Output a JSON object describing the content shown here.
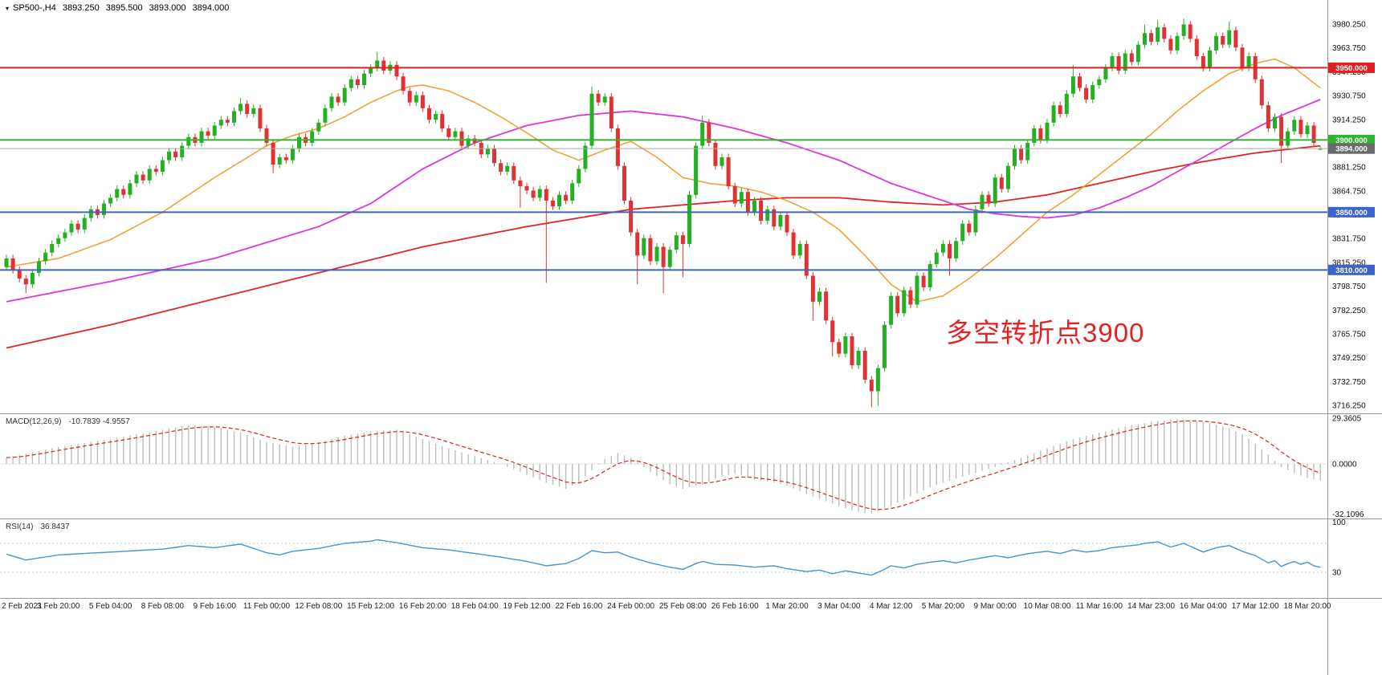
{
  "header": {
    "collapse_icon": "▾",
    "symbol_tf": "SP500-,H4",
    "open": "3893.250",
    "high": "3895.500",
    "low": "3893.000",
    "close": "3894.000"
  },
  "chart_data": {
    "type": "candlestick",
    "symbol": "SP500-",
    "timeframe": "H4",
    "bars_per_label": 8,
    "x_labels": [
      "2 Feb 2021",
      "3 Feb 20:00",
      "5 Feb 04:00",
      "8 Feb 08:00",
      "9 Feb 16:00",
      "11 Feb 00:00",
      "12 Feb 08:00",
      "15 Feb 12:00",
      "16 Feb 20:00",
      "18 Feb 04:00",
      "19 Feb 12:00",
      "22 Feb 16:00",
      "24 Feb 00:00",
      "25 Feb 08:00",
      "26 Feb 16:00",
      "1 Mar 20:00",
      "3 Mar 04:00",
      "4 Mar 12:00",
      "5 Mar 20:00",
      "9 Mar 00:00",
      "10 Mar 08:00",
      "11 Mar 16:00",
      "14 Mar 23:00",
      "16 Mar 04:00",
      "17 Mar 12:00",
      "18 Mar 20:00"
    ],
    "y_axis": {
      "top": 3980.25,
      "step": 16.5,
      "count": 17
    },
    "closes": [
      3818,
      3810,
      3804,
      3800,
      3808,
      3816,
      3822,
      3828,
      3832,
      3836,
      3842,
      3838,
      3846,
      3852,
      3848,
      3856,
      3860,
      3866,
      3862,
      3870,
      3876,
      3872,
      3880,
      3878,
      3886,
      3892,
      3888,
      3896,
      3902,
      3898,
      3906,
      3903,
      3910,
      3914,
      3912,
      3920,
      3925,
      3918,
      3922,
      3908,
      3898,
      3883,
      3888,
      3886,
      3894,
      3902,
      3898,
      3906,
      3912,
      3922,
      3930,
      3926,
      3936,
      3942,
      3938,
      3946,
      3950,
      3955,
      3948,
      3952,
      3944,
      3934,
      3926,
      3931,
      3922,
      3914,
      3918,
      3908,
      3902,
      3906,
      3896,
      3901,
      3898,
      3890,
      3894,
      3884,
      3878,
      3882,
      3872,
      3868,
      3865,
      3860,
      3866,
      3858,
      3854,
      3862,
      3858,
      3870,
      3880,
      3896,
      3932,
      3926,
      3930,
      3908,
      3882,
      3858,
      3836,
      3820,
      3832,
      3816,
      3826,
      3812,
      3824,
      3834,
      3828,
      3862,
      3896,
      3912,
      3898,
      3882,
      3888,
      3868,
      3856,
      3864,
      3850,
      3858,
      3844,
      3852,
      3840,
      3848,
      3836,
      3820,
      3828,
      3806,
      3788,
      3795,
      3775,
      3760,
      3752,
      3764,
      3744,
      3754,
      3734,
      3726,
      3742,
      3772,
      3792,
      3780,
      3796,
      3786,
      3806,
      3798,
      3814,
      3822,
      3828,
      3818,
      3830,
      3842,
      3836,
      3852,
      3862,
      3856,
      3874,
      3866,
      3882,
      3894,
      3886,
      3898,
      3908,
      3900,
      3912,
      3924,
      3918,
      3932,
      3944,
      3936,
      3928,
      3938,
      3942,
      3950,
      3958,
      3948,
      3960,
      3954,
      3966,
      3974,
      3968,
      3978,
      3970,
      3962,
      3972,
      3980,
      3970,
      3958,
      3950,
      3962,
      3972,
      3966,
      3976,
      3964,
      3950,
      3958,
      3942,
      3924,
      3908,
      3916,
      3896,
      3906,
      3914,
      3904,
      3910,
      3898,
      3894
    ],
    "wick_highs": {
      "36": 3929,
      "57": 3961,
      "90": 3937,
      "107": 3917,
      "164": 3952,
      "175": 3980,
      "177": 3983,
      "181": 3984,
      "188": 3982
    },
    "wick_lows": {
      "3": 3794,
      "41": 3877,
      "79": 3853,
      "83": 3801,
      "97": 3800,
      "101": 3794,
      "104": 3805,
      "124": 3775,
      "127": 3750,
      "133": 3715,
      "134": 3716,
      "145": 3806,
      "196": 3884
    },
    "last_bar": {
      "o": 3893.25,
      "h": 3895.5,
      "l": 3893.0,
      "c": 3894.0
    },
    "colors": {
      "up": "#23b123",
      "down": "#e03232",
      "axis_text": "#111111",
      "time_text": "#222222",
      "divider": "#9b9b9b",
      "level_dotted": "#c8c8c8"
    },
    "hlines": [
      {
        "price": 3950,
        "color": "#e02020",
        "width": 2,
        "label": "3950.000",
        "badge": "#e02020"
      },
      {
        "price": 3900,
        "color": "#2fb52f",
        "width": 2,
        "label": "3900.000",
        "badge": "#2fb52f"
      },
      {
        "price": 3894,
        "color": "#a8a8a8",
        "width": 1,
        "label": "3894.000",
        "badge": "#6b6b6b"
      },
      {
        "price": 3850,
        "color": "#3c64c8",
        "width": 2,
        "label": "3850.000",
        "badge": "#3c64c8"
      },
      {
        "price": 3810,
        "color": "#3c64c8",
        "width": 2,
        "label": "3810.000",
        "badge": "#3c64c8"
      }
    ],
    "moving_averages": [
      {
        "name": "ma-slow-red",
        "color": "#e02525",
        "width": 1.8,
        "points": [
          [
            0,
            3756
          ],
          [
            16,
            3772
          ],
          [
            32,
            3790
          ],
          [
            48,
            3808
          ],
          [
            64,
            3826
          ],
          [
            80,
            3840
          ],
          [
            96,
            3852
          ],
          [
            112,
            3858
          ],
          [
            120,
            3860
          ],
          [
            128,
            3860
          ],
          [
            136,
            3857
          ],
          [
            144,
            3855
          ],
          [
            152,
            3857
          ],
          [
            160,
            3862
          ],
          [
            168,
            3870
          ],
          [
            176,
            3878
          ],
          [
            184,
            3885
          ],
          [
            192,
            3891
          ],
          [
            202,
            3896
          ]
        ]
      },
      {
        "name": "ma-mid-magenta",
        "color": "#dd35dd",
        "width": 1.8,
        "points": [
          [
            0,
            3788
          ],
          [
            16,
            3802
          ],
          [
            32,
            3818
          ],
          [
            48,
            3840
          ],
          [
            56,
            3856
          ],
          [
            64,
            3880
          ],
          [
            72,
            3898
          ],
          [
            80,
            3910
          ],
          [
            88,
            3917
          ],
          [
            96,
            3920
          ],
          [
            104,
            3916
          ],
          [
            112,
            3908
          ],
          [
            120,
            3898
          ],
          [
            128,
            3886
          ],
          [
            136,
            3870
          ],
          [
            144,
            3858
          ],
          [
            148,
            3852
          ],
          [
            152,
            3849
          ],
          [
            156,
            3847
          ],
          [
            160,
            3846
          ],
          [
            164,
            3848
          ],
          [
            168,
            3853
          ],
          [
            172,
            3860
          ],
          [
            176,
            3868
          ],
          [
            180,
            3878
          ],
          [
            184,
            3888
          ],
          [
            188,
            3898
          ],
          [
            192,
            3908
          ],
          [
            196,
            3917
          ],
          [
            202,
            3928
          ]
        ]
      },
      {
        "name": "ma-fast-orange",
        "color": "#f0a238",
        "width": 1.6,
        "points": [
          [
            0,
            3812
          ],
          [
            8,
            3818
          ],
          [
            16,
            3831
          ],
          [
            24,
            3850
          ],
          [
            32,
            3874
          ],
          [
            40,
            3896
          ],
          [
            44,
            3903
          ],
          [
            48,
            3908
          ],
          [
            52,
            3916
          ],
          [
            56,
            3926
          ],
          [
            60,
            3934
          ],
          [
            62,
            3937
          ],
          [
            64,
            3938
          ],
          [
            68,
            3934
          ],
          [
            72,
            3926
          ],
          [
            76,
            3916
          ],
          [
            80,
            3905
          ],
          [
            84,
            3893
          ],
          [
            88,
            3886
          ],
          [
            92,
            3893
          ],
          [
            96,
            3899
          ],
          [
            100,
            3888
          ],
          [
            104,
            3874
          ],
          [
            108,
            3870
          ],
          [
            112,
            3868
          ],
          [
            116,
            3864
          ],
          [
            120,
            3858
          ],
          [
            124,
            3850
          ],
          [
            128,
            3838
          ],
          [
            132,
            3820
          ],
          [
            136,
            3800
          ],
          [
            140,
            3788
          ],
          [
            144,
            3792
          ],
          [
            148,
            3804
          ],
          [
            152,
            3818
          ],
          [
            156,
            3834
          ],
          [
            160,
            3850
          ],
          [
            164,
            3862
          ],
          [
            168,
            3876
          ],
          [
            172,
            3890
          ],
          [
            176,
            3904
          ],
          [
            180,
            3920
          ],
          [
            184,
            3934
          ],
          [
            188,
            3946
          ],
          [
            192,
            3953
          ],
          [
            195,
            3956
          ],
          [
            198,
            3950
          ],
          [
            202,
            3936
          ]
        ]
      }
    ],
    "macd": {
      "label": "MACD(12,26,9)",
      "values": "-10.7839 -4.9557",
      "axis": [
        "29.3605",
        "0.0000",
        "-32.1096"
      ],
      "axis_values": [
        29.3605,
        0,
        -32.1096
      ],
      "hist_color": "#bdbdbd",
      "signal_color": "#e02020",
      "points": [
        [
          0,
          4
        ],
        [
          8,
          11
        ],
        [
          16,
          16
        ],
        [
          24,
          22
        ],
        [
          28,
          25
        ],
        [
          32,
          24
        ],
        [
          36,
          20
        ],
        [
          40,
          14
        ],
        [
          44,
          11
        ],
        [
          48,
          14
        ],
        [
          52,
          18
        ],
        [
          56,
          21
        ],
        [
          60,
          22
        ],
        [
          64,
          16
        ],
        [
          68,
          10
        ],
        [
          72,
          5
        ],
        [
          76,
          0
        ],
        [
          80,
          -7
        ],
        [
          83,
          -12
        ],
        [
          86,
          -16
        ],
        [
          88,
          -12
        ],
        [
          90,
          -4
        ],
        [
          92,
          3
        ],
        [
          94,
          7
        ],
        [
          96,
          4
        ],
        [
          99,
          -5
        ],
        [
          102,
          -13
        ],
        [
          104,
          -16
        ],
        [
          107,
          -13
        ],
        [
          110,
          -8
        ],
        [
          112,
          -6
        ],
        [
          115,
          -10
        ],
        [
          118,
          -12
        ],
        [
          120,
          -14
        ],
        [
          124,
          -21
        ],
        [
          128,
          -27
        ],
        [
          131,
          -31
        ],
        [
          133,
          -32
        ],
        [
          136,
          -27
        ],
        [
          139,
          -21
        ],
        [
          142,
          -15
        ],
        [
          144,
          -12
        ],
        [
          148,
          -7
        ],
        [
          152,
          -2
        ],
        [
          156,
          4
        ],
        [
          160,
          10
        ],
        [
          164,
          16
        ],
        [
          168,
          20
        ],
        [
          172,
          24
        ],
        [
          176,
          27
        ],
        [
          180,
          29
        ],
        [
          184,
          27
        ],
        [
          186,
          25
        ],
        [
          188,
          23
        ],
        [
          190,
          19
        ],
        [
          192,
          13
        ],
        [
          194,
          6
        ],
        [
          196,
          -2
        ],
        [
          198,
          -6
        ],
        [
          200,
          -9
        ],
        [
          202,
          -10.78
        ]
      ]
    },
    "rsi": {
      "label": "RSI(14)",
      "value": "36.8437",
      "axis_top": "100",
      "axis_low": "30",
      "levels": [
        70,
        30
      ],
      "color": "#4596d2",
      "points": [
        [
          0,
          55
        ],
        [
          3,
          47
        ],
        [
          8,
          54
        ],
        [
          16,
          58
        ],
        [
          24,
          62
        ],
        [
          28,
          67
        ],
        [
          32,
          64
        ],
        [
          36,
          69
        ],
        [
          40,
          57
        ],
        [
          42,
          54
        ],
        [
          44,
          59
        ],
        [
          48,
          63
        ],
        [
          52,
          70
        ],
        [
          56,
          73
        ],
        [
          57,
          75
        ],
        [
          60,
          71
        ],
        [
          64,
          64
        ],
        [
          68,
          61
        ],
        [
          72,
          56
        ],
        [
          76,
          51
        ],
        [
          80,
          45
        ],
        [
          83,
          39
        ],
        [
          86,
          42
        ],
        [
          88,
          49
        ],
        [
          90,
          60
        ],
        [
          92,
          57
        ],
        [
          94,
          58
        ],
        [
          96,
          51
        ],
        [
          99,
          43
        ],
        [
          102,
          37
        ],
        [
          104,
          34
        ],
        [
          106,
          42
        ],
        [
          107,
          45
        ],
        [
          109,
          41
        ],
        [
          112,
          40
        ],
        [
          115,
          37
        ],
        [
          118,
          39
        ],
        [
          120,
          35
        ],
        [
          123,
          31
        ],
        [
          125,
          33
        ],
        [
          127,
          28
        ],
        [
          129,
          32
        ],
        [
          131,
          29
        ],
        [
          133,
          26
        ],
        [
          135,
          34
        ],
        [
          136,
          39
        ],
        [
          138,
          36
        ],
        [
          140,
          41
        ],
        [
          142,
          44
        ],
        [
          144,
          46
        ],
        [
          146,
          43
        ],
        [
          148,
          47
        ],
        [
          150,
          50
        ],
        [
          152,
          53
        ],
        [
          154,
          50
        ],
        [
          156,
          54
        ],
        [
          158,
          57
        ],
        [
          160,
          59
        ],
        [
          162,
          56
        ],
        [
          164,
          61
        ],
        [
          166,
          58
        ],
        [
          168,
          60
        ],
        [
          170,
          64
        ],
        [
          172,
          66
        ],
        [
          174,
          68
        ],
        [
          175,
          70
        ],
        [
          177,
          72
        ],
        [
          179,
          65
        ],
        [
          181,
          70
        ],
        [
          183,
          62
        ],
        [
          184,
          58
        ],
        [
          185,
          61
        ],
        [
          186,
          64
        ],
        [
          188,
          67
        ],
        [
          190,
          59
        ],
        [
          192,
          53
        ],
        [
          193,
          48
        ],
        [
          194,
          43
        ],
        [
          195,
          46
        ],
        [
          196,
          38
        ],
        [
          197,
          42
        ],
        [
          198,
          45
        ],
        [
          199,
          41
        ],
        [
          200,
          44
        ],
        [
          201,
          39
        ],
        [
          202,
          36.84
        ]
      ]
    },
    "annotation": {
      "text": "多空转折点3900",
      "color": "#e32222"
    }
  }
}
